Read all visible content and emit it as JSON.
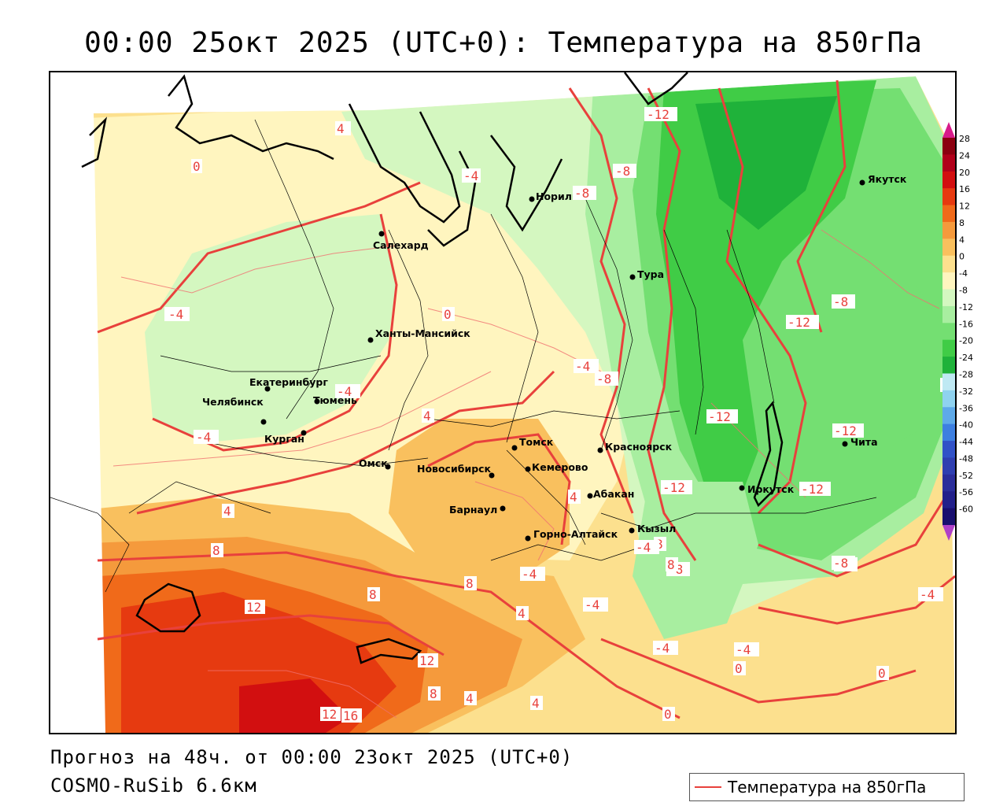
{
  "title": "00:00 25окт 2025 (UTC+0): Температура на 850гПа",
  "forecast_text": "Прогноз на 48ч. от 00:00 23окт 2025 (UTC+0)",
  "model_text": "COSMO-RuSib 6.6км",
  "legend": {
    "label": "Температура на 850гПа",
    "line_color": "#e8413c"
  },
  "colorbar": {
    "ticks": [
      "28",
      "24",
      "20",
      "16",
      "12",
      "8",
      "4",
      "0",
      "-4",
      "-8",
      "-12",
      "-16",
      "-20",
      "-24",
      "-28",
      "-32",
      "-36",
      "-40",
      "-44",
      "-48",
      "-52",
      "-56",
      "-60"
    ],
    "colors": [
      "#8b0010",
      "#b0001a",
      "#d20f10",
      "#e63a10",
      "#f06a1a",
      "#f59a3c",
      "#f9c05e",
      "#fce08e",
      "#fff5bf",
      "#d4f7c0",
      "#a8eea0",
      "#74df72",
      "#40cc46",
      "#1fb23a",
      "#bfe9f3",
      "#8fd2ef",
      "#5ea9e8",
      "#3d7fe0",
      "#3152c7",
      "#2f3fb0",
      "#2b2e9a",
      "#22208a",
      "#180f6e"
    ],
    "top_color": "#d81b8a",
    "bottom_color": "#b040c8"
  },
  "cities": [
    {
      "name": "Якутск"
    },
    {
      "name": "Норильск"
    },
    {
      "name": "Салехард"
    },
    {
      "name": "Тура"
    },
    {
      "name": "Ханты-Мансийск"
    },
    {
      "name": "Екатеринбург"
    },
    {
      "name": "Тюмень"
    },
    {
      "name": "Челябинск"
    },
    {
      "name": "Курган"
    },
    {
      "name": "Омск"
    },
    {
      "name": "Новосибирск"
    },
    {
      "name": "Томск"
    },
    {
      "name": "Кемерово"
    },
    {
      "name": "Красноярск"
    },
    {
      "name": "Абакан"
    },
    {
      "name": "Барнаул"
    },
    {
      "name": "Горно-Алтайск"
    },
    {
      "name": "Кызыл"
    },
    {
      "name": "Иркутск"
    },
    {
      "name": "Чита"
    }
  ],
  "isotherm_labels": [
    "4",
    "0",
    "-4",
    "-4",
    "-8",
    "-12",
    "-8",
    "-4",
    "0",
    "-4",
    "-4",
    "-8",
    "-4",
    "4",
    "4",
    "-12",
    "-12",
    "-8",
    "-12",
    "-12",
    "-8",
    "-8",
    "-4",
    "-8",
    "-4",
    "-4",
    "-4",
    "0",
    "0",
    "4",
    "4",
    "8",
    "8",
    "8",
    "12",
    "12",
    "12",
    "16",
    "8",
    "4",
    "4",
    "0",
    "8",
    "8",
    "-12",
    "-4",
    "-8"
  ]
}
